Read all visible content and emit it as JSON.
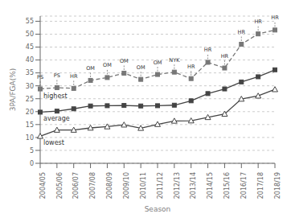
{
  "chart_data": {
    "type": "line",
    "categories": [
      "2004/05",
      "2005/06",
      "2006/07",
      "2007/08",
      "2008/09",
      "2009/10",
      "2010/11",
      "2011/12",
      "2012/13",
      "2013/14",
      "2014/15",
      "2015/16",
      "2016/17",
      "2017/18",
      "2018/19"
    ],
    "series": [
      {
        "name": "highest",
        "color": "#777777",
        "line_style": "dashed",
        "marker": "square",
        "values": [
          28.8,
          29.3,
          29.0,
          32.1,
          33.2,
          34.9,
          32.5,
          34.4,
          35.3,
          32.8,
          39.1,
          36.9,
          46.1,
          50.1,
          51.6
        ],
        "point_labels": [
          "PS",
          "PS",
          "HR",
          "OM",
          "OM",
          "OM",
          "OM",
          "OM",
          "NYK",
          "HR",
          "HR",
          "HR",
          "HR",
          "HR",
          "HR"
        ]
      },
      {
        "name": "average",
        "color": "#444444",
        "line_style": "solid",
        "marker": "square",
        "values": [
          19.8,
          20.2,
          21.1,
          22.2,
          22.3,
          22.4,
          22.2,
          22.3,
          22.5,
          24.2,
          27.0,
          28.8,
          31.5,
          33.5,
          36.2
        ]
      },
      {
        "name": "lowest",
        "color": "#444444",
        "line_style": "solid",
        "marker": "open_triangle",
        "values": [
          10.5,
          12.9,
          12.9,
          13.7,
          14.2,
          14.9,
          13.6,
          15.1,
          16.4,
          16.5,
          17.8,
          19.1,
          24.9,
          26.1,
          28.6
        ]
      }
    ],
    "xlabel": "Season",
    "ylabel": "3PA/FGA(%)",
    "ylim": [
      0,
      57
    ],
    "yticks": [
      0,
      5,
      10,
      15,
      20,
      25,
      30,
      35,
      40,
      45,
      50,
      55
    ],
    "grid": true
  }
}
